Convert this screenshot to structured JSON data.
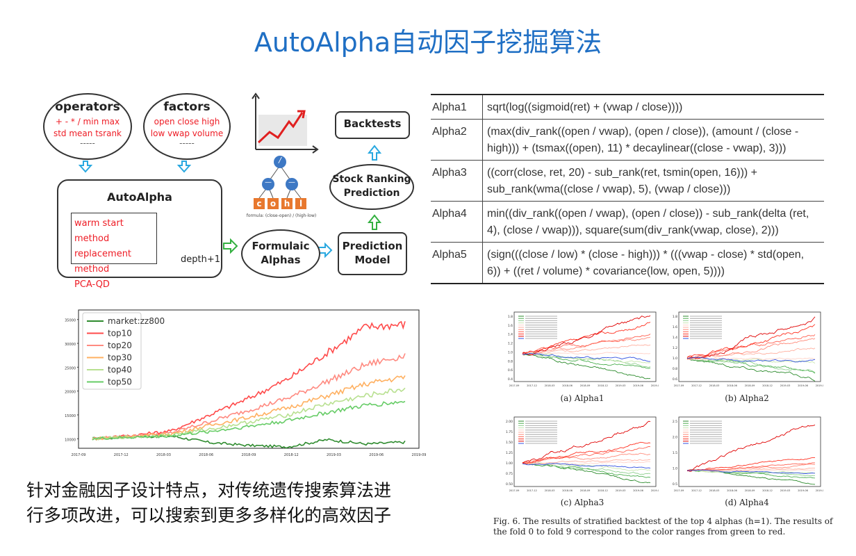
{
  "page": {
    "title": "AutoAlpha自动因子挖掘算法",
    "description_lines": [
      "针对金融因子设计特点，对传统遗传搜索算法进",
      "行多项改进，可以搜索到更多多样化的高效因子"
    ]
  },
  "diagram": {
    "operators": {
      "title": "operators",
      "line1": "+  -  * / min max",
      "line2": "std  mean tsrank",
      "dots": "-----"
    },
    "factors": {
      "title": "factors",
      "line1": "open close high",
      "line2": "low vwap volume",
      "dots": "-----"
    },
    "autoalpha": {
      "title": "AutoAlpha",
      "methods": [
        "warm start method",
        "replacement method",
        "PCA-QD"
      ],
      "loop_label": "depth+1"
    },
    "formulaic_alphas": [
      "Formulaic",
      "Alphas"
    ],
    "prediction_model": [
      "Prediction",
      "Model"
    ],
    "stock_ranking": [
      "Stock Ranking",
      "Prediction"
    ],
    "backtests": "Backtests",
    "tree": {
      "root": "/",
      "mid_left": "—",
      "mid_right": "—",
      "leaves": [
        "c",
        "o",
        "h",
        "l"
      ],
      "formula": "formula: (close-open) / (high-low)"
    }
  },
  "alphas": [
    {
      "name": "Alpha1",
      "formula": "sqrt(log((sigmoid(ret) + (vwap / close))))"
    },
    {
      "name": "Alpha2",
      "formula": "(max(div_rank((open / vwap), (open / close)), (amount / (close - high))) + (tsmax((open), 11) * decaylinear((close - vwap), 3)))"
    },
    {
      "name": "Alpha3",
      "formula": "((corr(close, ret, 20) - sub_rank(ret, tsmin(open, 16))) + sub_rank(wma((close / vwap), 5), (vwap / close)))"
    },
    {
      "name": "Alpha4",
      "formula": "min((div_rank((open / vwap), (open / close)) - sub_rank(delta (ret, 4), (close / vwap))), square(sum(div_rank(vwap, close), 2)))"
    },
    {
      "name": "Alpha5",
      "formula": "(sign(((close / low) * (close - high))) * (((vwap - close) * std(open, 6)) + ((ret / volume) * covariance(low, open, 5))))"
    }
  ],
  "chart_data": {
    "type": "line",
    "x": [
      "2017-09",
      "2017-12",
      "2018-03",
      "2018-06",
      "2018-09",
      "2018-12",
      "2019-03",
      "2019-06",
      "2019-09"
    ],
    "x_tick_labels": [
      "2017-09",
      "2017-12",
      "2018-03",
      "2018-06",
      "2018-09",
      "2018-12",
      "2019-03",
      "2019-06",
      "2019-09"
    ],
    "y_tick_labels": [
      "10000",
      "15000",
      "20000",
      "25000",
      "30000",
      "35000"
    ],
    "ylim": [
      8000,
      37000
    ],
    "legend": "top-left",
    "series": [
      {
        "name": "market:zz800",
        "color": "#2e8b2e",
        "values": [
          10000,
          10400,
          10600,
          9200,
          8600,
          8300,
          9800,
          8900,
          9300
        ]
      },
      {
        "name": "top10",
        "color": "#ff4a4a",
        "values": [
          10000,
          10700,
          11600,
          15000,
          18500,
          22500,
          28000,
          33500,
          34000
        ]
      },
      {
        "name": "top20",
        "color": "#ff8a80",
        "values": [
          10000,
          10600,
          11200,
          13600,
          16000,
          18500,
          22000,
          25500,
          27500
        ]
      },
      {
        "name": "top30",
        "color": "#ffb060",
        "values": [
          10000,
          10500,
          11000,
          12800,
          14500,
          16500,
          19000,
          21500,
          23000
        ]
      },
      {
        "name": "top40",
        "color": "#b8e090",
        "values": [
          10000,
          10400,
          10800,
          12000,
          13500,
          15000,
          17300,
          19000,
          20500
        ]
      },
      {
        "name": "top50",
        "color": "#66cc66",
        "values": [
          10000,
          10300,
          10600,
          11500,
          12600,
          13800,
          15500,
          17000,
          17800
        ]
      }
    ]
  },
  "mini_charts": [
    {
      "caption": "(a) Alpha1",
      "yticks": [
        "1.8",
        "1.6",
        "1.4",
        "1.2",
        "1.0",
        "0.8",
        "0.6",
        "0.4"
      ]
    },
    {
      "caption": "(b) Alpha2",
      "yticks": [
        "1.8",
        "1.6",
        "1.4",
        "1.2",
        "1.0",
        "0.8",
        "0.6"
      ]
    },
    {
      "caption": "(c) Alpha3",
      "yticks": [
        "2.00",
        "1.75",
        "1.50",
        "1.25",
        "1.00",
        "0.75",
        "0.50"
      ]
    },
    {
      "caption": "(d) Alpha4",
      "yticks": [
        "2.5",
        "2.0",
        "1.5",
        "1.0",
        "0.5"
      ]
    }
  ],
  "figure_caption": "Fig. 6.  The results of stratified backtest of the top 4 alphas (h=1). The results of the fold 0 to fold 9 correspond to the color ranges from green to red."
}
